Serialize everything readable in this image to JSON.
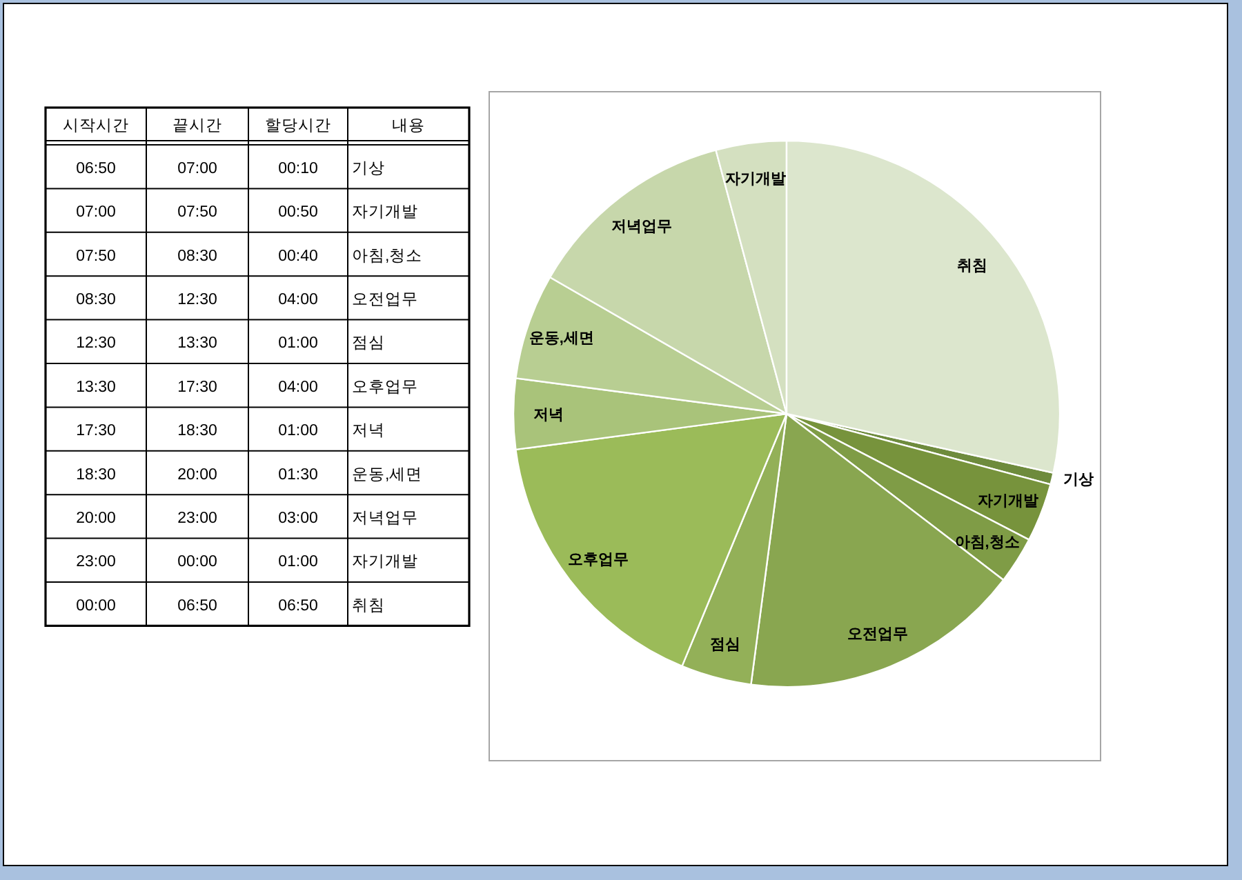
{
  "chart_data": {
    "type": "pie",
    "categories": [
      "기상",
      "자기개발",
      "아침,청소",
      "오전업무",
      "점심",
      "오후업무",
      "저녁",
      "운동,세면",
      "저녁업무",
      "자기개발",
      "취침"
    ],
    "values": [
      0.69,
      3.47,
      2.78,
      16.67,
      4.17,
      16.66,
      4.17,
      6.25,
      12.5,
      4.17,
      28.47
    ],
    "colors": [
      "#6e8b3d",
      "#77933c",
      "#7f9c46",
      "#89a650",
      "#93b058",
      "#9bbb59",
      "#a9c37a",
      "#b8ce92",
      "#c7d7ab",
      "#d4e0c0",
      "#dce6cd"
    ],
    "annotations": [
      "시작시간",
      "끝시간",
      "할당시간",
      "내용",
      "06:50",
      "07:00",
      "00:10",
      "07:00",
      "07:50",
      "00:50",
      "07:50",
      "08:30",
      "00:40",
      "08:30",
      "12:30",
      "04:00",
      "12:30",
      "13:30",
      "01:00",
      "13:30",
      "17:30",
      "04:00",
      "17:30",
      "18:30",
      "01:00",
      "18:30",
      "20:00",
      "01:30",
      "20:00",
      "23:00",
      "03:00",
      "23:00",
      "00:00",
      "01:00",
      "00:00",
      "06:50",
      "06:50"
    ]
  }
}
